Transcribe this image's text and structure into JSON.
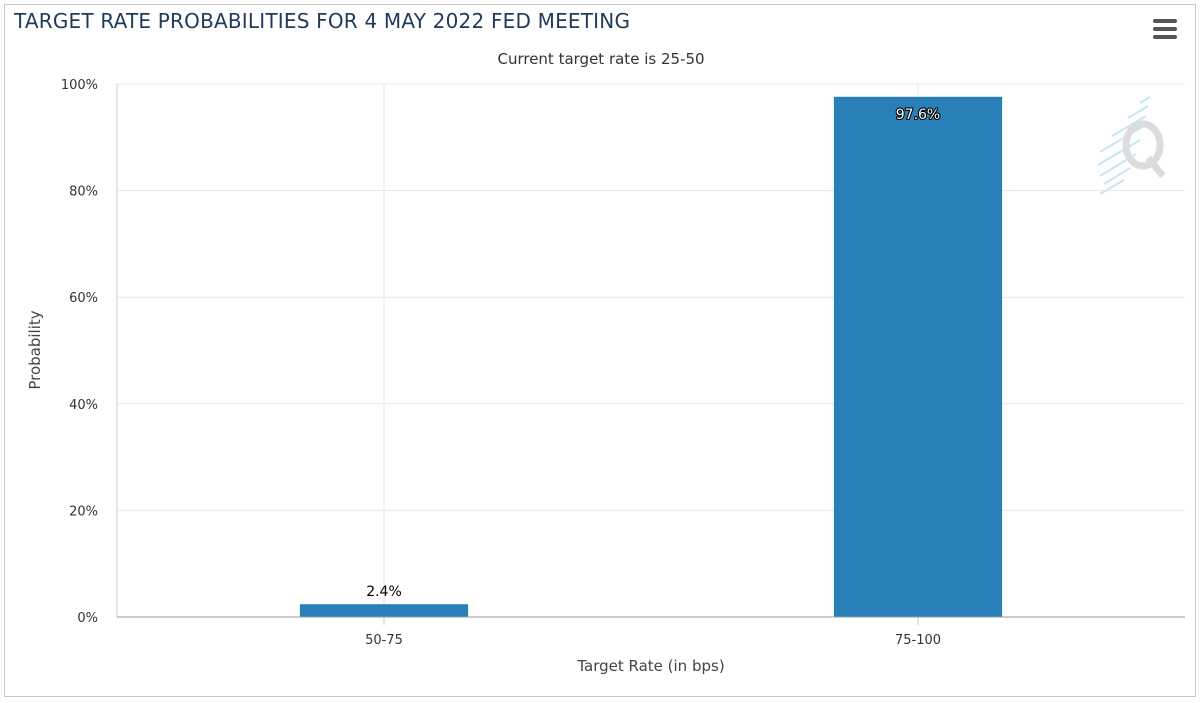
{
  "chart_data": {
    "type": "bar",
    "title": "TARGET RATE PROBABILITIES FOR 4 MAY 2022 FED MEETING",
    "subtitle": "Current target rate is 25-50",
    "xlabel": "Target Rate (in bps)",
    "ylabel": "Probability",
    "categories": [
      "50-75",
      "75-100"
    ],
    "values": [
      2.4,
      97.6
    ],
    "data_labels": [
      "2.4%",
      "97.6%"
    ],
    "yticks": [
      0,
      20,
      40,
      60,
      80,
      100
    ],
    "ytick_labels": [
      "0%",
      "20%",
      "40%",
      "60%",
      "80%",
      "100%"
    ],
    "ylim": [
      0,
      100
    ],
    "grid": true,
    "legend": false,
    "bar_color": "#2980b9"
  }
}
